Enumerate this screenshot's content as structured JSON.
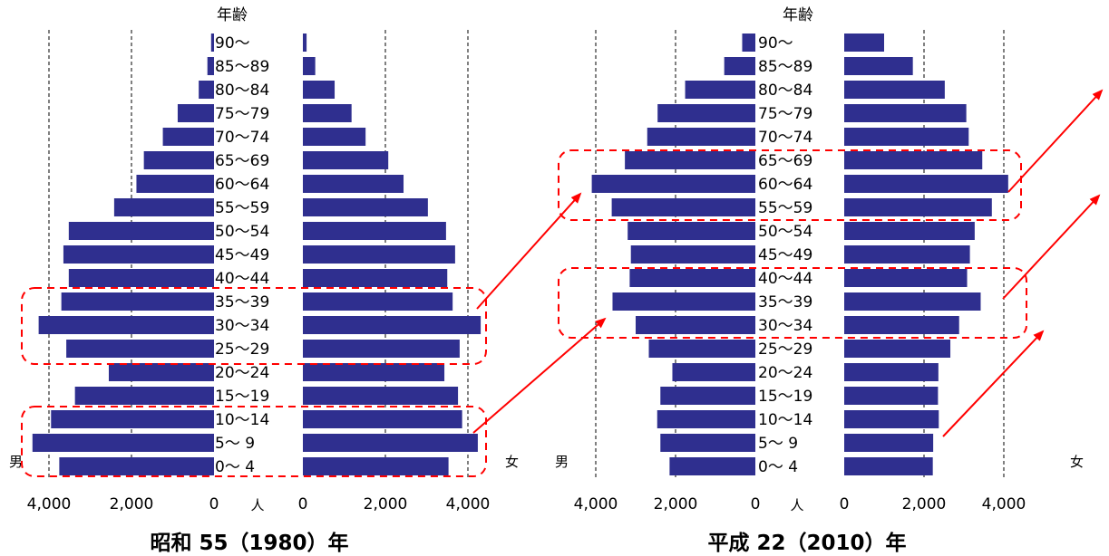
{
  "chart_data": [
    {
      "type": "bar",
      "orientation": "horizontal-population-pyramid",
      "title": "昭和 55（1980）年",
      "age_header": "年齢",
      "categories": [
        "90～",
        "85～89",
        "80～84",
        "75～79",
        "70～74",
        "65～69",
        "60～64",
        "55～59",
        "50～54",
        "45～49",
        "40～44",
        "35～39",
        "30～34",
        "25～29",
        "20～24",
        "15～19",
        "10～14",
        "5～ 9",
        "0～ 4"
      ],
      "series": [
        {
          "name": "男",
          "side": "left",
          "values": [
            70,
            160,
            370,
            880,
            1240,
            1700,
            1880,
            2420,
            3520,
            3650,
            3520,
            3700,
            4250,
            3580,
            2550,
            3370,
            3950,
            4400,
            3750
          ]
        },
        {
          "name": "女",
          "side": "right",
          "values": [
            90,
            300,
            770,
            1180,
            1520,
            2070,
            2440,
            3030,
            3470,
            3690,
            3500,
            3630,
            4310,
            3800,
            3430,
            3760,
            3860,
            4240,
            3530
          ]
        }
      ],
      "unit_label": "人",
      "x_ticks_left": [
        "4,000",
        "2,000",
        "0"
      ],
      "x_ticks_right": [
        "0",
        "2,000",
        "4,000"
      ],
      "xlim": [
        0,
        4700
      ],
      "grid": "dashed vertical at 2,000 and 4,000"
    },
    {
      "type": "bar",
      "orientation": "horizontal-population-pyramid",
      "title": "平成 22（2010）年",
      "age_header": "年齢",
      "categories": [
        "90～",
        "85～89",
        "80～84",
        "75～79",
        "70～74",
        "65～69",
        "60～64",
        "55～59",
        "50～54",
        "45～49",
        "40～44",
        "35～39",
        "30～34",
        "25～29",
        "20～24",
        "15～19",
        "10～14",
        "5～ 9",
        "0～ 4"
      ],
      "series": [
        {
          "name": "男",
          "side": "left",
          "values": [
            330,
            780,
            1760,
            2450,
            2710,
            3270,
            4100,
            3600,
            3200,
            3120,
            3150,
            3580,
            3000,
            2670,
            2080,
            2380,
            2460,
            2380,
            2150
          ]
        },
        {
          "name": "女",
          "side": "right",
          "values": [
            1000,
            1720,
            2520,
            3060,
            3120,
            3460,
            4110,
            3700,
            3270,
            3150,
            3080,
            3420,
            2880,
            2660,
            2360,
            2350,
            2370,
            2230,
            2220
          ]
        }
      ],
      "unit_label": "人",
      "x_ticks_left": [
        "4,000",
        "2,000",
        "0"
      ],
      "x_ticks_right": [
        "0",
        "2,000",
        "4,000"
      ],
      "xlim": [
        0,
        4700
      ],
      "grid": "dashed vertical at 2,000 and 4,000"
    }
  ],
  "colors": {
    "bar": "#2f2f8f",
    "grid": "#000000",
    "highlight": "#ff0000",
    "arrow": "#ff0000"
  }
}
